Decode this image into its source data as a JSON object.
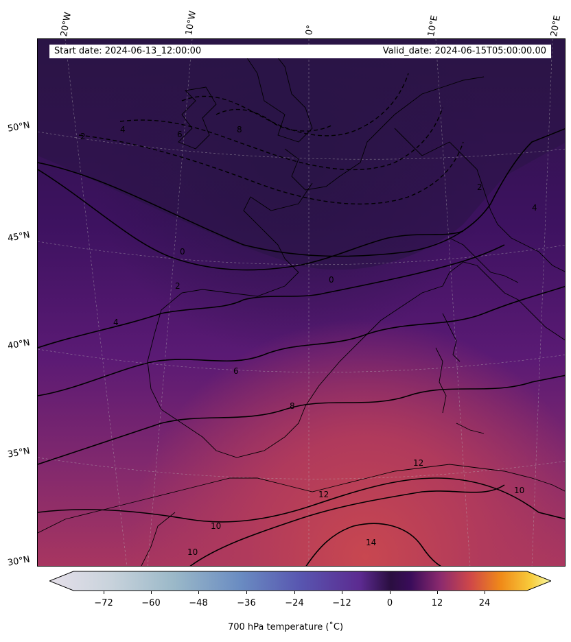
{
  "header": {
    "start_date": "Start date: 2024-06-13_12:00:00",
    "valid_date": "Valid_date: 2024-06-15T05:00:00.00"
  },
  "axes": {
    "lon_labels": [
      "20°W",
      "10°W",
      "0°",
      "10°E",
      "20°E"
    ],
    "lat_labels": [
      "50°N",
      "45°N",
      "40°N",
      "35°N",
      "30°N"
    ]
  },
  "map": {
    "variable": "700 hPa temperature",
    "contour_labels": [
      "2",
      "4",
      "6",
      "8",
      "0",
      "2",
      "4",
      "6",
      "8",
      "12",
      "12",
      "14",
      "10",
      "10",
      "10",
      "0",
      "2",
      "4"
    ],
    "colors": {
      "cold": "#1f0f3a",
      "mid": "#4a1270",
      "warm": "#b83a5a",
      "hot": "#d04a4a"
    }
  },
  "colorbar": {
    "label": "700 hPa temperature (˚C)",
    "ticks": [
      "−72",
      "−60",
      "−48",
      "−36",
      "−24",
      "−12",
      "0",
      "12",
      "24"
    ]
  }
}
